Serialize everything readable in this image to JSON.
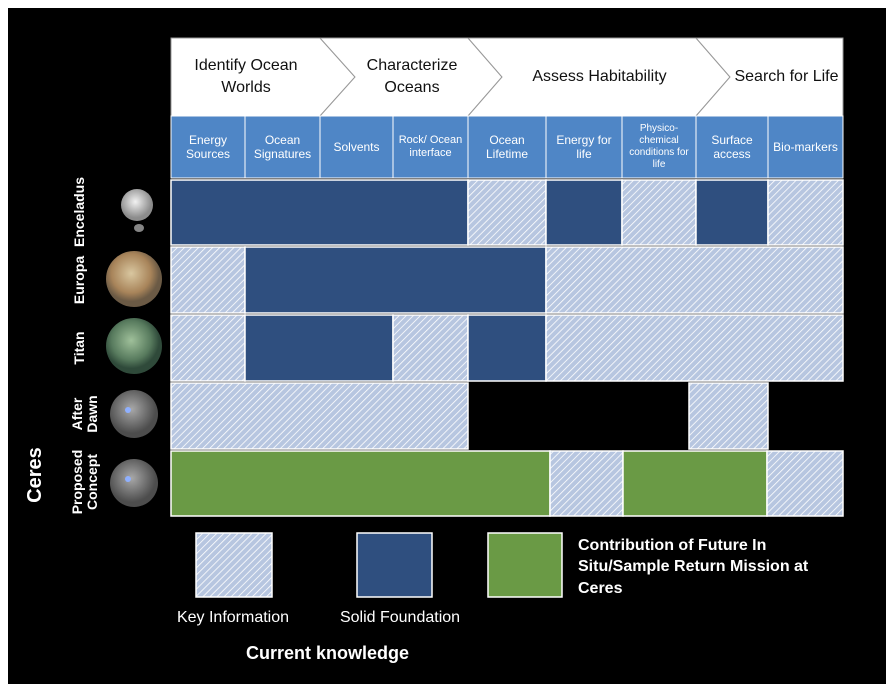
{
  "stages": [
    "Identify Ocean Worlds",
    "Characterize Oceans",
    "Assess Habitability",
    "Search for Life"
  ],
  "columns": [
    "Energy Sources",
    "Ocean Signatures",
    "Solvents",
    "Rock/ Ocean interface",
    "Ocean Lifetime",
    "Energy for life",
    "Physico-chemical conditions for life",
    "Surface access",
    "Bio-markers"
  ],
  "rows": [
    "Enceladus",
    "Europa",
    "Titan",
    "After Dawn",
    "Proposed Concept"
  ],
  "group": "Ceres",
  "legend": [
    "Key Information",
    "Solid Foundation",
    "Contribution of Future In Situ/Sample Return Mission at Ceres"
  ],
  "legend_title": "Current knowledge"
}
